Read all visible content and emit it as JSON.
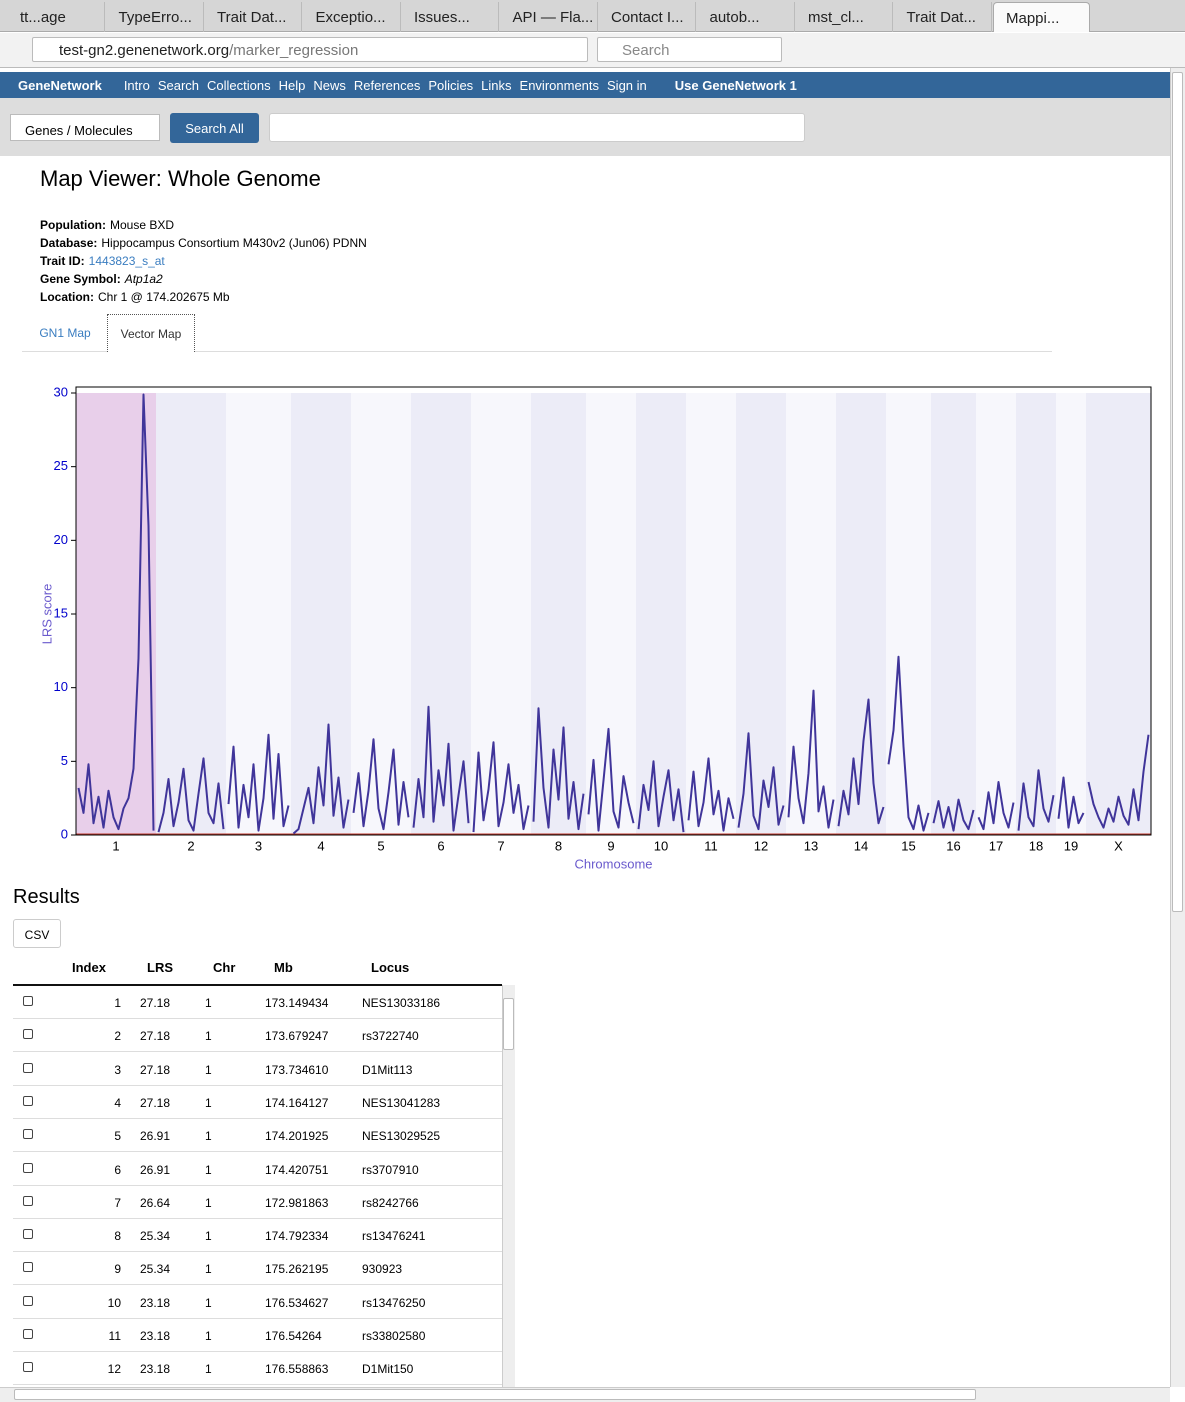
{
  "browser": {
    "tabs": [
      "tt...age",
      "TypeErro...",
      "Trait Dat...",
      "Exceptio...",
      "Issues...",
      "API — Fla...",
      "Contact I...",
      "autob...",
      "mst_cl...",
      "Trait Dat...",
      "Mappi..."
    ],
    "url_host": "test-gn2.genenetwork.org",
    "url_path": "/marker_regression",
    "search_placeholder": "Search"
  },
  "nav": {
    "brand": "GeneNetwork",
    "links": [
      "Intro",
      "Search",
      "Collections",
      "Help",
      "News",
      "References",
      "Policies",
      "Links",
      "Environments",
      "Sign in"
    ],
    "gn1": "Use GeneNetwork 1"
  },
  "search": {
    "select": "Genes / Molecules",
    "button": "Search All"
  },
  "header": {
    "title": "Map Viewer: Whole Genome",
    "fields": [
      {
        "label": "Population:",
        "value": "Mouse BXD"
      },
      {
        "label": "Database:",
        "value": "Hippocampus Consortium M430v2 (Jun06) PDNN"
      },
      {
        "label": "Trait ID:",
        "value": "1443823_s_at"
      },
      {
        "label": "Gene Symbol:",
        "value": "Atp1a2"
      },
      {
        "label": "Location:",
        "value": "Chr 1 @ 174.202675 Mb"
      }
    ]
  },
  "tabs": [
    "GN1 Map",
    "Vector Map"
  ],
  "chart_data": {
    "type": "line",
    "ylabel": "LRS score",
    "xlabel": "Chromosome",
    "color": "#40359a",
    "categories": [
      "1",
      "2",
      "3",
      "4",
      "5",
      "6",
      "7",
      "8",
      "9",
      "10",
      "11",
      "12",
      "13",
      "14",
      "15",
      "16",
      "17",
      "18",
      "19",
      "X"
    ],
    "values": [
      [
        3.2,
        1.5,
        4.8,
        0.8,
        2.6,
        0.5,
        3.0,
        1.2,
        0.4,
        1.8,
        2.5,
        4.5,
        12.0,
        29.9,
        21.0,
        0.3
      ],
      [
        0.2,
        1.5,
        3.8,
        0.6,
        2.2,
        4.5,
        1.0,
        0.3,
        2.8,
        5.2,
        1.5,
        0.8,
        3.5,
        0.4
      ],
      [
        2.1,
        6.0,
        0.5,
        3.4,
        1.2,
        4.8,
        0.3,
        2.5,
        6.8,
        1.1,
        5.5,
        0.6,
        2.0
      ],
      [
        0.1,
        0.4,
        1.8,
        3.2,
        0.8,
        4.6,
        2.0,
        7.5,
        1.3,
        3.9,
        0.5,
        2.4
      ],
      [
        1.5,
        4.2,
        0.6,
        3.0,
        6.5,
        1.8,
        0.4,
        2.9,
        5.8,
        0.7,
        3.6,
        1.2
      ],
      [
        0.5,
        3.8,
        1.2,
        8.7,
        0.9,
        4.4,
        2.0,
        6.2,
        0.3,
        2.7,
        5.0,
        0.8
      ],
      [
        0.2,
        5.6,
        1.0,
        3.1,
        6.3,
        0.6,
        2.2,
        4.8,
        1.5,
        3.4,
        0.4,
        2.0
      ],
      [
        0.9,
        8.6,
        3.2,
        0.5,
        5.8,
        2.4,
        7.3,
        1.1,
        3.6,
        0.4,
        2.8
      ],
      [
        1.4,
        5.1,
        0.3,
        3.7,
        7.2,
        1.6,
        0.5,
        4.0,
        2.2,
        0.8
      ],
      [
        0.4,
        3.4,
        1.7,
        5.0,
        0.6,
        2.6,
        4.4,
        1.0,
        3.1,
        0.2
      ],
      [
        1.0,
        4.3,
        0.6,
        2.2,
        5.2,
        1.4,
        3.0,
        0.3,
        2.5,
        1.1
      ],
      [
        0.5,
        2.8,
        6.9,
        1.3,
        0.4,
        3.7,
        1.9,
        4.6,
        0.7,
        2.0
      ],
      [
        1.2,
        6.0,
        2.5,
        0.8,
        4.2,
        9.8,
        1.6,
        3.3,
        0.5,
        2.4
      ],
      [
        0.6,
        3.0,
        1.4,
        5.2,
        2.1,
        6.4,
        9.2,
        3.5,
        0.8,
        1.9
      ],
      [
        4.8,
        7.1,
        12.1,
        6.0,
        1.2,
        0.4,
        2.0,
        0.3,
        1.5
      ],
      [
        0.8,
        2.3,
        0.5,
        1.9,
        0.3,
        2.4,
        1.0,
        0.4,
        1.7
      ],
      [
        1.2,
        0.4,
        2.9,
        0.8,
        3.6,
        1.5,
        0.5,
        2.2
      ],
      [
        0.3,
        3.5,
        1.2,
        0.6,
        4.4,
        1.8,
        0.9,
        2.7
      ],
      [
        1.1,
        3.9,
        0.5,
        2.6,
        0.8,
        1.5
      ],
      [
        3.6,
        2.1,
        1.2,
        0.5,
        1.8,
        0.9,
        2.6,
        1.3,
        0.7,
        3.1,
        1.0,
        4.3,
        6.8
      ]
    ],
    "ylim": [
      0,
      30
    ],
    "yticks": [
      0,
      5,
      10,
      15,
      20,
      25,
      30
    ]
  },
  "results": {
    "title": "Results",
    "csv": "CSV",
    "columns": [
      "Index",
      "LRS",
      "Chr",
      "Mb",
      "Locus"
    ],
    "rows": [
      [
        1,
        27.18,
        1,
        173.149434,
        "NES13033186"
      ],
      [
        2,
        27.18,
        1,
        173.679247,
        "rs3722740"
      ],
      [
        3,
        27.18,
        1,
        "173.734610",
        "D1Mit113"
      ],
      [
        4,
        27.18,
        1,
        174.164127,
        "NES13041283"
      ],
      [
        5,
        26.91,
        1,
        174.201925,
        "NES13029525"
      ],
      [
        6,
        26.91,
        1,
        174.420751,
        "rs3707910"
      ],
      [
        7,
        26.64,
        1,
        172.981863,
        "rs8242766"
      ],
      [
        8,
        25.34,
        1,
        174.792334,
        "rs13476241"
      ],
      [
        9,
        25.34,
        1,
        175.262195,
        "930923"
      ],
      [
        10,
        23.18,
        1,
        176.534627,
        "rs13476250"
      ],
      [
        11,
        23.18,
        1,
        176.54264,
        "rs33802580"
      ],
      [
        12,
        23.18,
        1,
        176.558863,
        "D1Mit150"
      ]
    ]
  }
}
